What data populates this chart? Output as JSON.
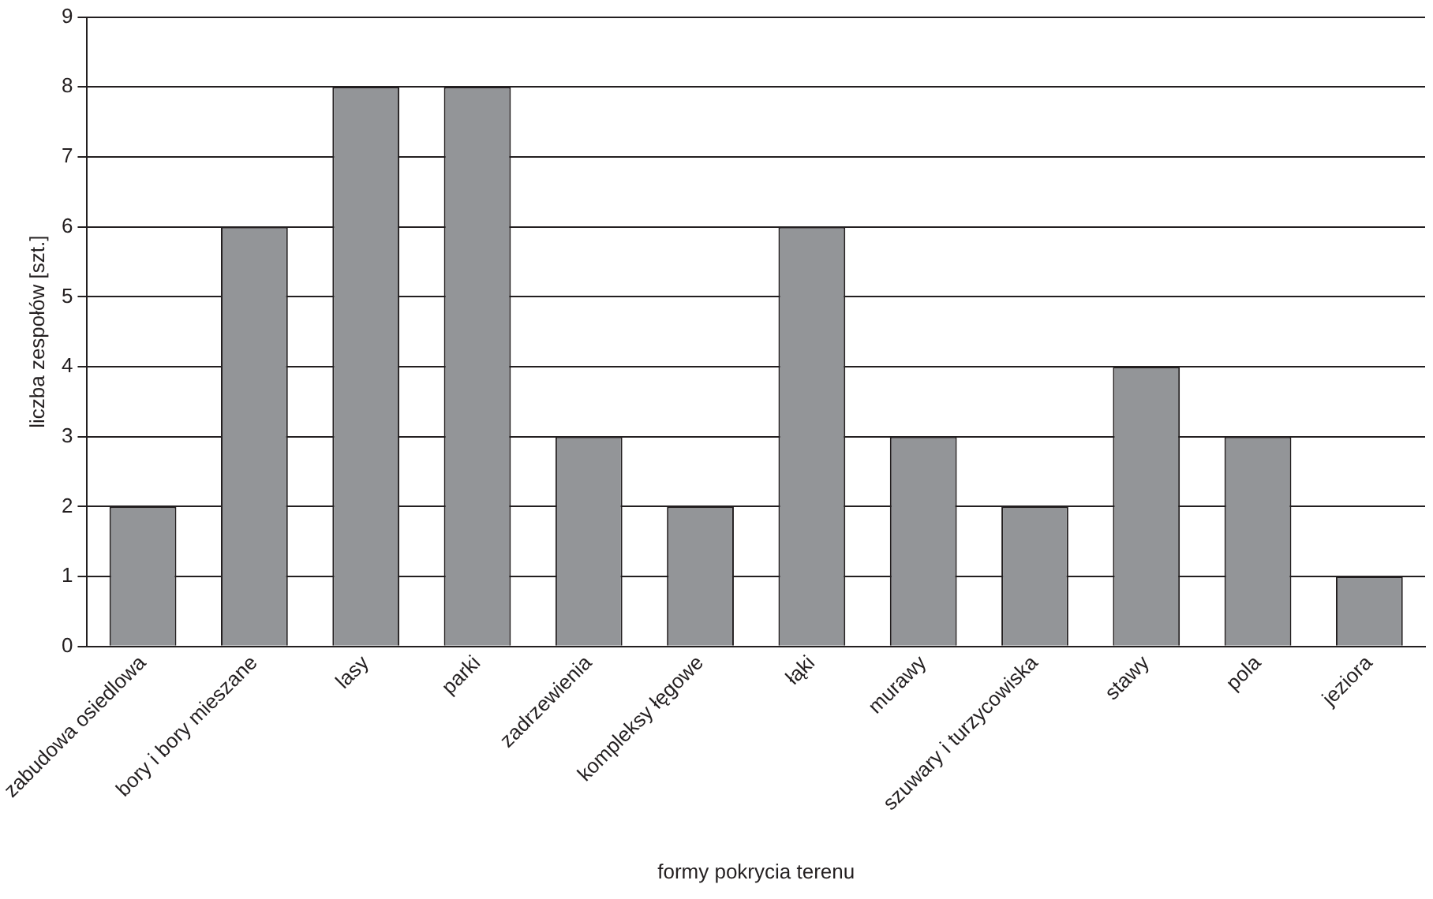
{
  "chart_data": {
    "type": "bar",
    "xlabel": "formy pokrycia terenu",
    "ylabel": "liczba zespołów [szt.]",
    "categories": [
      "zabudowa osiedlowa",
      "bory i bory mieszane",
      "lasy",
      "parki",
      "zadrzewienia",
      "kompleksy łęgowe",
      "łąki",
      "murawy",
      "szuwary i turzycowiska",
      "stawy",
      "pola",
      "jeziora"
    ],
    "values": [
      2,
      6,
      8,
      8,
      3,
      2,
      6,
      3,
      2,
      4,
      3,
      1
    ],
    "color": "#939598",
    "ylim": [
      0,
      9
    ],
    "yticks": [
      0,
      1,
      2,
      3,
      4,
      5,
      6,
      7,
      8,
      9
    ],
    "grid": "y"
  }
}
